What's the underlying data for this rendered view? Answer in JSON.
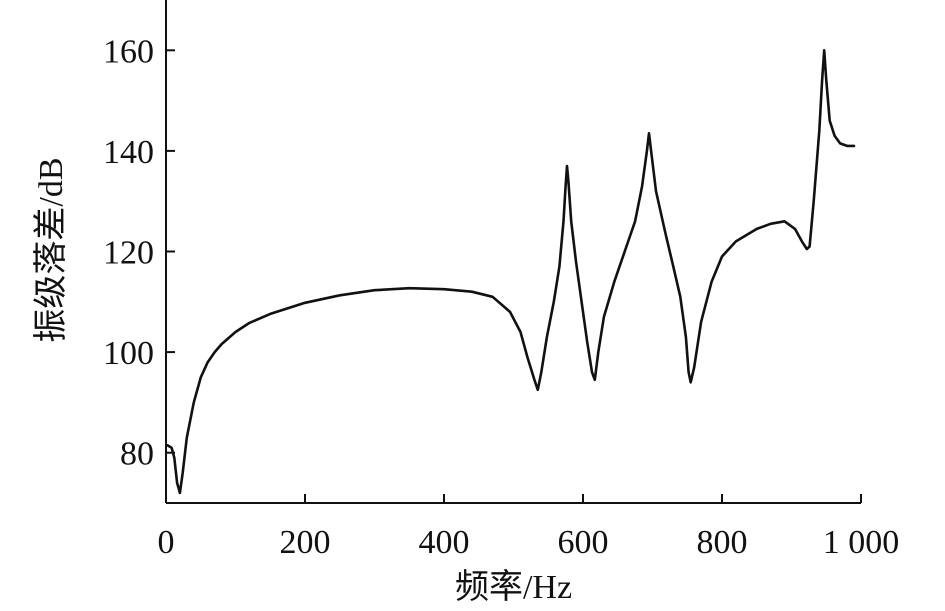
{
  "chart_data": {
    "type": "line",
    "xlabel": "频率/Hz",
    "ylabel": "振级落差/dB",
    "xlim": [
      0,
      1000
    ],
    "ylim": [
      70,
      170
    ],
    "x_ticks": [
      {
        "value": 0,
        "label": "0"
      },
      {
        "value": 200,
        "label": "200"
      },
      {
        "value": 400,
        "label": "400"
      },
      {
        "value": 600,
        "label": "600"
      },
      {
        "value": 800,
        "label": "800"
      },
      {
        "value": 1000,
        "label": "1 000"
      }
    ],
    "y_ticks": [
      {
        "value": 80,
        "label": "80"
      },
      {
        "value": 100,
        "label": "100"
      },
      {
        "value": 120,
        "label": "120"
      },
      {
        "value": 140,
        "label": "140"
      },
      {
        "value": 160,
        "label": "160"
      }
    ],
    "grid": false,
    "series": [
      {
        "color": "#111111",
        "points": [
          [
            2,
            81.5
          ],
          [
            8,
            81
          ],
          [
            12,
            79
          ],
          [
            16,
            74
          ],
          [
            20,
            72
          ],
          [
            24,
            76
          ],
          [
            30,
            83
          ],
          [
            40,
            90
          ],
          [
            50,
            95
          ],
          [
            60,
            98
          ],
          [
            70,
            100
          ],
          [
            80,
            101.6
          ],
          [
            100,
            104
          ],
          [
            120,
            105.8
          ],
          [
            150,
            107.6
          ],
          [
            200,
            109.8
          ],
          [
            250,
            111.3
          ],
          [
            300,
            112.3
          ],
          [
            350,
            112.7
          ],
          [
            400,
            112.5
          ],
          [
            440,
            112
          ],
          [
            470,
            111
          ],
          [
            495,
            108
          ],
          [
            510,
            104
          ],
          [
            520,
            99
          ],
          [
            530,
            94.5
          ],
          [
            535,
            92.5
          ],
          [
            540,
            96
          ],
          [
            548,
            103
          ],
          [
            558,
            110
          ],
          [
            566,
            117
          ],
          [
            572,
            126
          ],
          [
            575,
            133
          ],
          [
            577,
            137
          ],
          [
            579,
            134
          ],
          [
            583,
            126
          ],
          [
            590,
            118
          ],
          [
            598,
            110
          ],
          [
            606,
            102
          ],
          [
            613,
            96
          ],
          [
            617,
            94.5
          ],
          [
            622,
            100
          ],
          [
            630,
            107
          ],
          [
            645,
            114
          ],
          [
            660,
            120
          ],
          [
            675,
            126
          ],
          [
            685,
            133
          ],
          [
            692,
            140
          ],
          [
            695,
            143.5
          ],
          [
            698,
            140
          ],
          [
            705,
            132
          ],
          [
            718,
            124
          ],
          [
            730,
            117
          ],
          [
            740,
            111
          ],
          [
            748,
            103
          ],
          [
            752,
            96
          ],
          [
            755,
            94
          ],
          [
            760,
            97
          ],
          [
            770,
            106
          ],
          [
            785,
            114
          ],
          [
            800,
            119
          ],
          [
            820,
            122
          ],
          [
            850,
            124.5
          ],
          [
            870,
            125.5
          ],
          [
            890,
            126
          ],
          [
            905,
            124.5
          ],
          [
            915,
            122
          ],
          [
            922,
            120.5
          ],
          [
            926,
            121
          ],
          [
            932,
            130
          ],
          [
            940,
            144
          ],
          [
            944,
            154
          ],
          [
            947,
            160
          ],
          [
            950,
            154
          ],
          [
            955,
            146
          ],
          [
            962,
            143
          ],
          [
            970,
            141.5
          ],
          [
            980,
            141
          ],
          [
            990,
            141
          ]
        ]
      }
    ]
  }
}
